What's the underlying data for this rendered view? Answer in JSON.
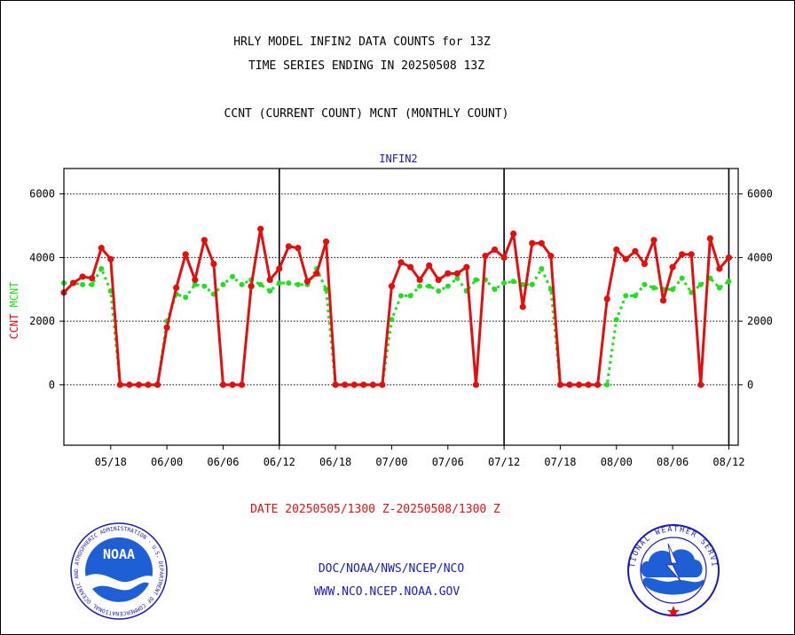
{
  "header": {
    "line1": "HRLY MODEL INFIN2 DATA COUNTS for 13Z",
    "line2": "TIME SERIES ENDING IN 20250508 13Z",
    "line3": "CCNT (CURRENT COUNT) MCNT (MONTHLY COUNT)"
  },
  "footer": {
    "date_range": "DATE 20250505/1300 Z-20250508/1300 Z",
    "org": "DOC/NOAA/NWS/NCEP/NCO",
    "url": "WWW.NCO.NCEP.NOAA.GOV"
  },
  "logos": {
    "noaa_text": "NOAA",
    "noaa_ring": "NATIONAL OCEANIC AND ATMOSPHERIC ADMINISTRATION · U.S. DEPARTMENT OF COMMERCE",
    "nws_ring": "NATIONAL WEATHER SERVICE"
  },
  "colors": {
    "ccnt": "#e01010",
    "mcnt": "#22dd22",
    "label_blue": "#1c1cb4",
    "ink": "#000000"
  },
  "chart_data": {
    "type": "line",
    "title": "INFIN2",
    "ylabel_left": [
      "CCNT",
      "MCNT"
    ],
    "ylim": [
      -1900,
      6800
    ],
    "yticks": [
      0,
      2000,
      4000,
      6000
    ],
    "grid": true,
    "x_range": [
      0,
      72
    ],
    "x_tick_labels": [
      {
        "label": "05/18",
        "x": 5
      },
      {
        "label": "06/00",
        "x": 11
      },
      {
        "label": "06/06",
        "x": 17
      },
      {
        "label": "06/12",
        "x": 23
      },
      {
        "label": "06/18",
        "x": 29
      },
      {
        "label": "07/00",
        "x": 35
      },
      {
        "label": "07/06",
        "x": 41
      },
      {
        "label": "07/12",
        "x": 47
      },
      {
        "label": "07/18",
        "x": 53
      },
      {
        "label": "08/00",
        "x": 59
      },
      {
        "label": "08/06",
        "x": 65
      },
      {
        "label": "08/12",
        "x": 71
      }
    ],
    "vlines": [
      23,
      47,
      71
    ],
    "series": [
      {
        "name": "CCNT",
        "style": "solid",
        "values": [
          2900,
          3200,
          3400,
          3350,
          4300,
          3950,
          0,
          0,
          0,
          0,
          0,
          1800,
          3050,
          4100,
          3300,
          4550,
          3800,
          0,
          0,
          0,
          3100,
          4900,
          3300,
          3650,
          4350,
          4300,
          3250,
          3500,
          4500,
          0,
          0,
          0,
          0,
          0,
          0,
          3100,
          3850,
          3700,
          3300,
          3750,
          3300,
          3500,
          3500,
          3700,
          0,
          4050,
          4250,
          4000,
          4750,
          2450,
          4450,
          4450,
          4050,
          0,
          0,
          0,
          0,
          0,
          2700,
          4250,
          3950,
          4200,
          3800,
          4550,
          2650,
          3700,
          4100,
          4100,
          0,
          4600,
          3650,
          4000
        ]
      },
      {
        "name": "MCNT",
        "style": "dotted",
        "values": [
          3200,
          3200,
          3150,
          3150,
          3650,
          2950,
          0,
          0,
          0,
          0,
          0,
          2000,
          2850,
          2750,
          3150,
          3100,
          2850,
          3150,
          3400,
          3150,
          3300,
          3150,
          2950,
          3200,
          3200,
          3150,
          3150,
          3650,
          3000,
          0,
          0,
          0,
          0,
          0,
          0,
          2050,
          2800,
          2800,
          3100,
          3100,
          2950,
          3100,
          3350,
          2950,
          3300,
          3300,
          3000,
          3200,
          3250,
          3150,
          3150,
          3650,
          3000,
          0,
          0,
          0,
          0,
          0,
          0,
          2050,
          2800,
          2800,
          3150,
          3050,
          3000,
          3000,
          3350,
          2900,
          3150,
          3350,
          3050,
          3250
        ]
      }
    ]
  }
}
